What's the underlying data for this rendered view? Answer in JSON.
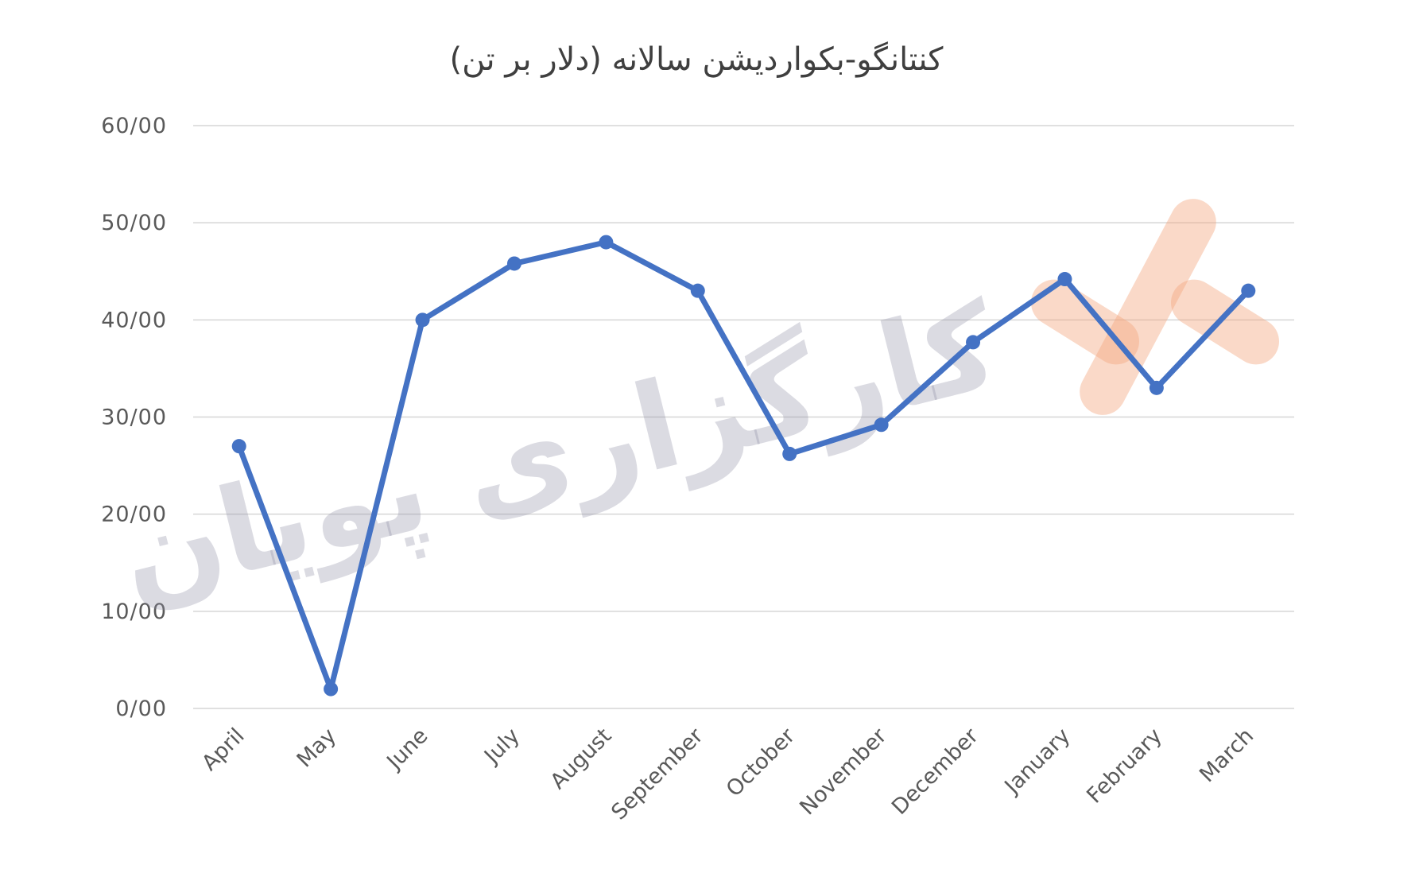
{
  "chart_data": {
    "type": "line",
    "title": "کنتانگو-بکواردیشن سالانه (دلار بر تن)",
    "xlabel": "",
    "ylabel": "",
    "categories": [
      "April",
      "May",
      "June",
      "July",
      "August",
      "September",
      "October",
      "November",
      "December",
      "January",
      "February",
      "March"
    ],
    "series": [
      {
        "values": [
          27,
          2,
          40,
          45.8,
          48,
          43,
          26.2,
          29.2,
          37.7,
          44.2,
          33,
          43
        ]
      }
    ],
    "y_ticks": [
      "0/00",
      "10/00",
      "20/00",
      "30/00",
      "40/00",
      "50/00",
      "60/00"
    ],
    "ylim": [
      0,
      60
    ],
    "grid": true,
    "legend": "none",
    "line_color": "#4472c4",
    "watermark": "کارگزاری پویان"
  }
}
